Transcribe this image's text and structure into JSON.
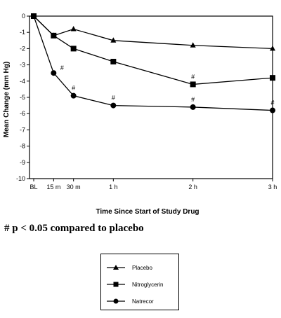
{
  "chart_data": {
    "type": "line",
    "title": "",
    "xlabel": "Time Since Start of Study Drug",
    "ylabel": "Mean Change (mm Hg)",
    "x": [
      0,
      15,
      30,
      60,
      120,
      180
    ],
    "x_tick_labels": [
      "BL",
      "15 m",
      "30 m",
      "1 h",
      "2 h",
      "3 h"
    ],
    "y_ticks": [
      0,
      -1,
      -2,
      -3,
      -4,
      -5,
      -6,
      -7,
      -8,
      -9,
      -10
    ],
    "ylim": [
      -10,
      0
    ],
    "grid": false,
    "legend_placement": "below",
    "series": [
      {
        "name": "Placebo",
        "marker": "triangle",
        "values": [
          0,
          -1.2,
          -0.8,
          -1.5,
          -1.8,
          -2.0
        ]
      },
      {
        "name": "Nitroglycerin",
        "marker": "square",
        "values": [
          0,
          -1.2,
          -2.0,
          -2.8,
          -4.2,
          -3.8
        ]
      },
      {
        "name": "Natrecor",
        "marker": "circle",
        "values": [
          0,
          -3.5,
          -4.9,
          -5.5,
          -5.6,
          -5.8
        ]
      }
    ],
    "annotations": [
      {
        "text": "#",
        "series": "Natrecor",
        "x": 15
      },
      {
        "text": "#",
        "series": "Natrecor",
        "x": 30
      },
      {
        "text": "#",
        "series": "Natrecor",
        "x": 60
      },
      {
        "text": "#",
        "series": "Nitroglycerin",
        "x": 120
      },
      {
        "text": "#",
        "series": "Natrecor",
        "x": 120
      },
      {
        "text": "#",
        "series": "Natrecor",
        "x": 180
      }
    ]
  },
  "footnote": "# p < 0.05 compared to placebo"
}
